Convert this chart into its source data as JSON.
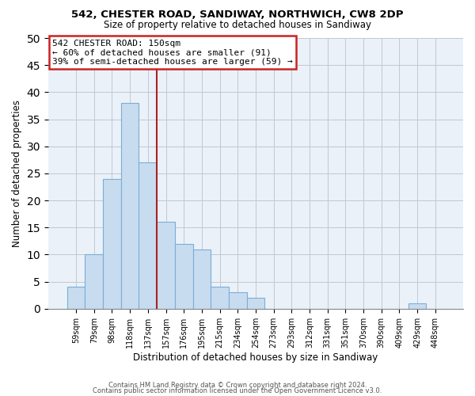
{
  "title1": "542, CHESTER ROAD, SANDIWAY, NORTHWICH, CW8 2DP",
  "title2": "Size of property relative to detached houses in Sandiway",
  "xlabel": "Distribution of detached houses by size in Sandiway",
  "ylabel": "Number of detached properties",
  "bar_labels": [
    "59sqm",
    "79sqm",
    "98sqm",
    "118sqm",
    "137sqm",
    "157sqm",
    "176sqm",
    "195sqm",
    "215sqm",
    "234sqm",
    "254sqm",
    "273sqm",
    "293sqm",
    "312sqm",
    "331sqm",
    "351sqm",
    "370sqm",
    "390sqm",
    "409sqm",
    "429sqm",
    "448sqm"
  ],
  "bar_values": [
    4,
    10,
    24,
    38,
    27,
    16,
    12,
    11,
    4,
    3,
    2,
    0,
    0,
    0,
    0,
    0,
    0,
    0,
    0,
    1,
    0
  ],
  "bar_color": "#c8dcf0",
  "bar_edge_color": "#7aaed6",
  "vline_x_index": 4.5,
  "vline_color": "#aa2222",
  "ylim": [
    0,
    50
  ],
  "yticks": [
    0,
    5,
    10,
    15,
    20,
    25,
    30,
    35,
    40,
    45,
    50
  ],
  "annotation_title": "542 CHESTER ROAD: 150sqm",
  "annotation_line1": "← 60% of detached houses are smaller (91)",
  "annotation_line2": "39% of semi-detached houses are larger (59) →",
  "footer1": "Contains HM Land Registry data © Crown copyright and database right 2024.",
  "footer2": "Contains public sector information licensed under the Open Government Licence v3.0.",
  "bg_color": "#eaf1f8",
  "fig_bg_color": "#ffffff"
}
